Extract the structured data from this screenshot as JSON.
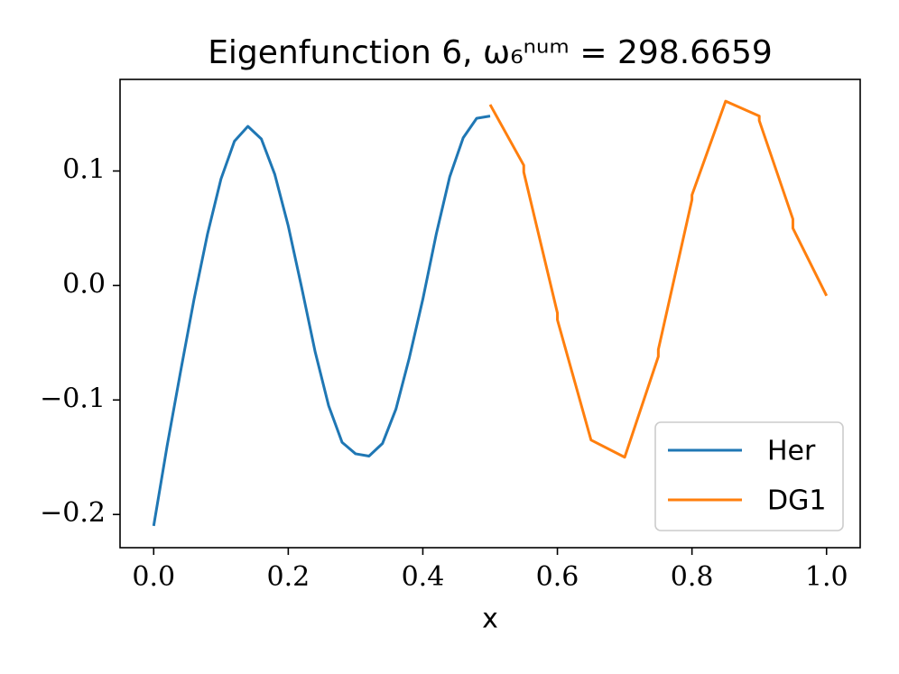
{
  "chart_data": {
    "type": "line",
    "title": "Eigenfunction 6, ω₆ⁿᵘᵐ = 298.6659",
    "x_label": "x",
    "series": [
      {
        "name": "Her",
        "color": "#1f77b4",
        "x": [
          0,
          0.02,
          0.04,
          0.06,
          0.08,
          0.1,
          0.12,
          0.14,
          0.16,
          0.18,
          0.2,
          0.22,
          0.24,
          0.26,
          0.28,
          0.3,
          0.32,
          0.34,
          0.36,
          0.38,
          0.4,
          0.42,
          0.44,
          0.46,
          0.48,
          0.5
        ],
        "values": [
          -0.21,
          -0.14,
          -0.075,
          -0.012,
          0.045,
          0.093,
          0.126,
          0.139,
          0.128,
          0.097,
          0.052,
          -0.002,
          -0.058,
          -0.105,
          -0.137,
          -0.147,
          -0.149,
          -0.138,
          -0.108,
          -0.063,
          -0.012,
          0.045,
          0.095,
          0.129,
          0.146,
          0.148
        ]
      },
      {
        "name": "DG1",
        "color": "#ff7f0e",
        "x": [
          0.5,
          0.55,
          0.55,
          0.6,
          0.6,
          0.65,
          0.7,
          0.75,
          0.75,
          0.8,
          0.8,
          0.85,
          0.9,
          0.9,
          0.95,
          0.95,
          1.0
        ],
        "values": [
          0.158,
          0.105,
          0.099,
          -0.024,
          -0.03,
          -0.135,
          -0.15,
          -0.062,
          -0.056,
          0.075,
          0.079,
          0.161,
          0.148,
          0.144,
          0.058,
          0.05,
          -0.009
        ]
      }
    ],
    "xlim": [
      -0.05,
      1.05
    ],
    "ylim": [
      -0.229,
      0.18
    ],
    "xticks": [
      {
        "value": 0,
        "label": "0.0"
      },
      0.2,
      0.4,
      0.6,
      0.8,
      {
        "value": 1,
        "label": "1.0"
      }
    ],
    "yticks": [
      {
        "value": -0.2,
        "label": "−0.2"
      },
      {
        "value": -0.1,
        "label": "−0.1"
      },
      {
        "value": 0,
        "label": "0.0"
      },
      0.1
    ],
    "grid": false,
    "legend": "lower right"
  }
}
